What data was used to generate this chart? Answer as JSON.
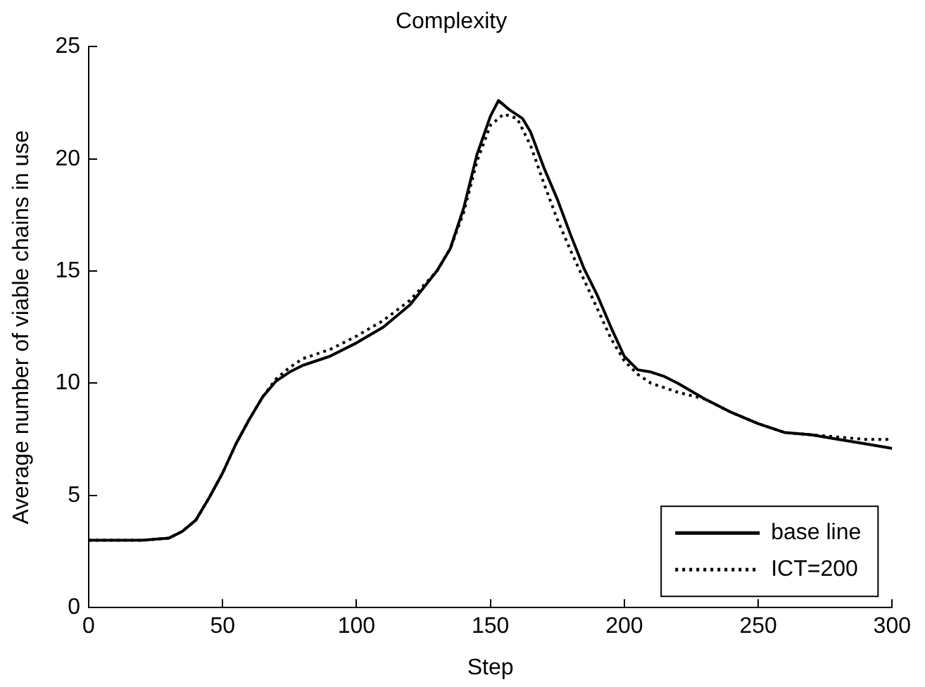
{
  "chart_data": {
    "type": "line",
    "title": "Complexity",
    "xlabel": "Step",
    "ylabel": "Average number of viable chains in use",
    "xlim": [
      0,
      300
    ],
    "xticks": [
      0,
      50,
      100,
      150,
      200,
      250,
      300
    ],
    "ylim": [
      0,
      25
    ],
    "yticks": [
      0,
      5,
      10,
      15,
      20,
      25
    ],
    "grid": false,
    "legend": "bottom right",
    "marker": "none",
    "series": [
      {
        "name": "base line",
        "color": "#000000",
        "line_style": "solid",
        "x": [
          0,
          20,
          30,
          35,
          40,
          45,
          50,
          55,
          60,
          65,
          70,
          75,
          80,
          90,
          100,
          110,
          120,
          130,
          135,
          140,
          145,
          150,
          153,
          157,
          162,
          165,
          170,
          175,
          180,
          185,
          190,
          195,
          200,
          205,
          210,
          215,
          220,
          230,
          240,
          250,
          260,
          270,
          280,
          290,
          300
        ],
        "values": [
          3,
          3,
          3.1,
          3.4,
          3.9,
          4.9,
          6,
          7.3,
          8.4,
          9.4,
          10.1,
          10.5,
          10.8,
          11.2,
          11.8,
          12.5,
          13.5,
          15,
          16,
          17.8,
          20.2,
          21.9,
          22.6,
          22.2,
          21.8,
          21.2,
          19.6,
          18.2,
          16.6,
          15.1,
          13.9,
          12.5,
          11.2,
          10.6,
          10.5,
          10.3,
          10,
          9.3,
          8.7,
          8.2,
          7.8,
          7.7,
          7.5,
          7.3,
          7.1
        ]
      },
      {
        "name": "ICT=200",
        "color": "#000000",
        "line_style": "dotted",
        "x": [
          0,
          20,
          30,
          35,
          40,
          45,
          50,
          55,
          60,
          65,
          70,
          75,
          80,
          90,
          100,
          110,
          120,
          130,
          135,
          140,
          145,
          150,
          155,
          160,
          165,
          170,
          175,
          180,
          185,
          190,
          195,
          200,
          205,
          210,
          220,
          230,
          240,
          250,
          260,
          270,
          280,
          290,
          300
        ],
        "values": [
          3,
          3,
          3.1,
          3.4,
          3.9,
          4.9,
          6,
          7.3,
          8.4,
          9.4,
          10.2,
          10.7,
          11.1,
          11.5,
          12.1,
          12.8,
          13.7,
          15,
          16,
          17.6,
          19.9,
          21.5,
          22,
          21.8,
          20.6,
          18.9,
          17.3,
          15.9,
          14.6,
          13.3,
          12,
          11,
          10.4,
          10,
          9.6,
          9.3,
          8.7,
          8.2,
          7.8,
          7.7,
          7.6,
          7.5,
          7.5
        ]
      }
    ]
  }
}
